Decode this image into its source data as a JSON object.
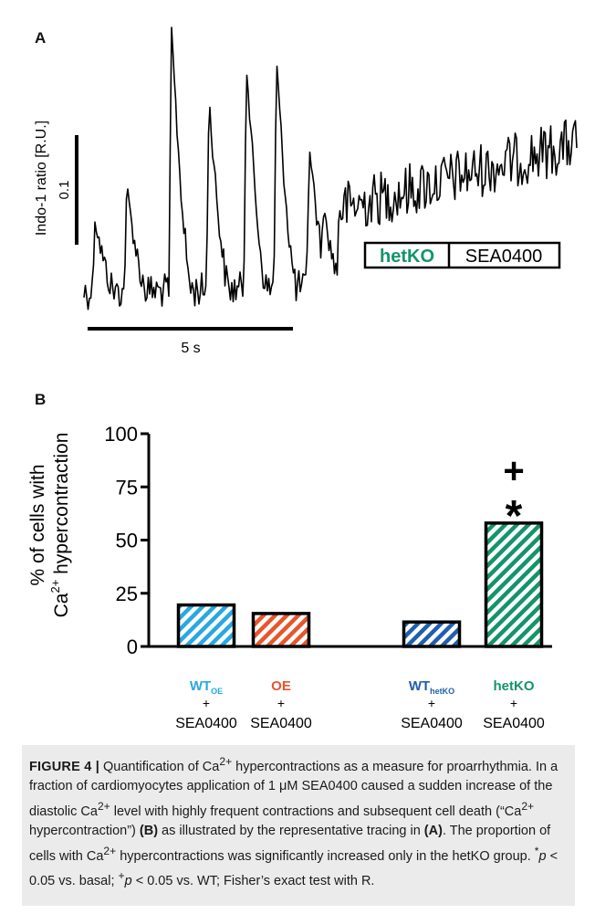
{
  "panel_a": {
    "letter": "A",
    "ylabel": "Indo-1 ratio [R.U.]",
    "scale_y_label": "0.1",
    "scale_x_label": "5 s",
    "legend_box": {
      "genotype": "hetKO",
      "drug": "SEA0400"
    }
  },
  "panel_b": {
    "letter": "B",
    "ylabel_line1": "% of cells with",
    "ylabel_line2_pre": "Ca",
    "ylabel_line2_sup": "2+",
    "ylabel_line2_post": " hypercontraction",
    "significance_plus": "+",
    "significance_star": "*"
  },
  "chart_data": {
    "type": "bar",
    "ylabel": "% of cells with Ca2+ hypercontraction",
    "ylim": [
      0,
      100
    ],
    "yticks": [
      0,
      25,
      50,
      75,
      100
    ],
    "categories": [
      {
        "name": "WT",
        "sub": "OE",
        "plus": "+",
        "treatment": "SEA0400",
        "color": "#29a8e0",
        "value": 19.5
      },
      {
        "name": "OE",
        "sub": "",
        "plus": "+",
        "treatment": "SEA0400",
        "color": "#e8552b",
        "value": 15.5
      },
      {
        "name": "WT",
        "sub": "hetKO",
        "plus": "+",
        "treatment": "SEA0400",
        "color": "#1f5fae",
        "value": 11.5
      },
      {
        "name": "hetKO",
        "sub": "",
        "plus": "+",
        "treatment": "SEA0400",
        "color": "#13946a",
        "value": 58
      }
    ],
    "annotations": [
      {
        "category": 3,
        "labels": [
          "+",
          "*"
        ]
      }
    ],
    "grid": false
  },
  "caption": {
    "label": "FIGURE 4 |",
    "text_1": " Quantification of Ca",
    "sup_1": "2+",
    "text_2": " hypercontractions as a measure for proarrhythmia. In a fraction of cardiomyocytes application of 1 μM SEA0400 caused a sudden increase of the diastolic Ca",
    "sup_2": "2+",
    "text_3": " level with highly frequent contractions and subsequent cell death (“Ca",
    "sup_3": "2+",
    "text_4": " hypercontraction”) ",
    "ref_b": "(B)",
    "text_5": " as illustrated by the representative tracing in ",
    "ref_a": "(A)",
    "text_6": ". The proportion of cells with Ca",
    "sup_4": "2+",
    "text_7": " hypercontractions was significantly increased only in the hetKO group. ",
    "star": "*",
    "p1": "p",
    "text_8": " < 0.05 vs. basal; ",
    "plus": "+",
    "p2": "p",
    "text_9": " < 0.05 vs. WT; Fisher’s exact test with R."
  }
}
